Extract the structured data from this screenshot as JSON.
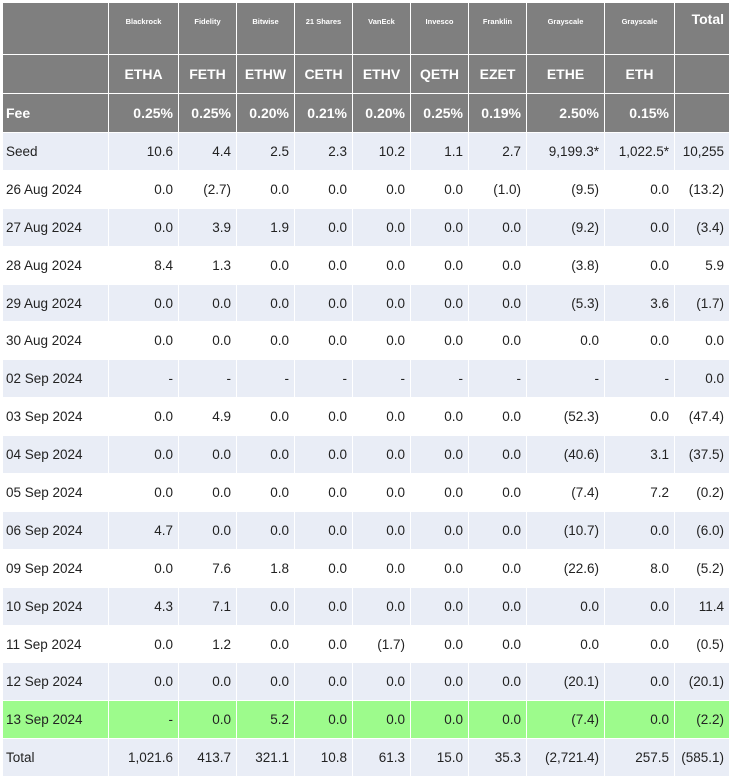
{
  "colors": {
    "header_bg": "#7f7f7f",
    "stripe_bg": "#e9edf6",
    "highlight_bg": "#9dfb8c",
    "negative_text": "#e8332e"
  },
  "issuers": [
    "Blackrock",
    "Fidelity",
    "Bitwise",
    "21 Shares",
    "VanEck",
    "Invesco",
    "Franklin",
    "Grayscale",
    "Grayscale"
  ],
  "total_header": "Total",
  "tickers": [
    "ETHA",
    "FETH",
    "ETHW",
    "CETH",
    "ETHV",
    "QETH",
    "EZET",
    "ETHE",
    "ETH"
  ],
  "fee_label": "Fee",
  "fees": [
    "0.25%",
    "0.25%",
    "0.20%",
    "0.21%",
    "0.20%",
    "0.25%",
    "0.19%",
    "2.50%",
    "0.15%"
  ],
  "rows": [
    {
      "label": "Seed",
      "cells": [
        "10.6",
        "4.4",
        "2.5",
        "2.3",
        "10.2",
        "1.1",
        "2.7",
        "9,199.3*",
        "1,022.5*",
        "10,255"
      ]
    },
    {
      "label": "26 Aug 2024",
      "cells": [
        "0.0",
        "(2.7)",
        "0.0",
        "0.0",
        "0.0",
        "0.0",
        "(1.0)",
        "(9.5)",
        "0.0",
        "(13.2)"
      ]
    },
    {
      "label": "27 Aug 2024",
      "cells": [
        "0.0",
        "3.9",
        "1.9",
        "0.0",
        "0.0",
        "0.0",
        "0.0",
        "(9.2)",
        "0.0",
        "(3.4)"
      ]
    },
    {
      "label": "28 Aug 2024",
      "cells": [
        "8.4",
        "1.3",
        "0.0",
        "0.0",
        "0.0",
        "0.0",
        "0.0",
        "(3.8)",
        "0.0",
        "5.9"
      ]
    },
    {
      "label": "29 Aug 2024",
      "cells": [
        "0.0",
        "0.0",
        "0.0",
        "0.0",
        "0.0",
        "0.0",
        "0.0",
        "(5.3)",
        "3.6",
        "(1.7)"
      ]
    },
    {
      "label": "30 Aug 2024",
      "cells": [
        "0.0",
        "0.0",
        "0.0",
        "0.0",
        "0.0",
        "0.0",
        "0.0",
        "0.0",
        "0.0",
        "0.0"
      ]
    },
    {
      "label": "02 Sep 2024",
      "cells": [
        "-",
        "-",
        "-",
        "-",
        "-",
        "-",
        "-",
        "-",
        "-",
        "0.0"
      ]
    },
    {
      "label": "03 Sep 2024",
      "cells": [
        "0.0",
        "4.9",
        "0.0",
        "0.0",
        "0.0",
        "0.0",
        "0.0",
        "(52.3)",
        "0.0",
        "(47.4)"
      ]
    },
    {
      "label": "04 Sep 2024",
      "cells": [
        "0.0",
        "0.0",
        "0.0",
        "0.0",
        "0.0",
        "0.0",
        "0.0",
        "(40.6)",
        "3.1",
        "(37.5)"
      ]
    },
    {
      "label": "05 Sep 2024",
      "cells": [
        "0.0",
        "0.0",
        "0.0",
        "0.0",
        "0.0",
        "0.0",
        "0.0",
        "(7.4)",
        "7.2",
        "(0.2)"
      ]
    },
    {
      "label": "06 Sep 2024",
      "cells": [
        "4.7",
        "0.0",
        "0.0",
        "0.0",
        "0.0",
        "0.0",
        "0.0",
        "(10.7)",
        "0.0",
        "(6.0)"
      ]
    },
    {
      "label": "09 Sep 2024",
      "cells": [
        "0.0",
        "7.6",
        "1.8",
        "0.0",
        "0.0",
        "0.0",
        "0.0",
        "(22.6)",
        "8.0",
        "(5.2)"
      ]
    },
    {
      "label": "10 Sep 2024",
      "cells": [
        "4.3",
        "7.1",
        "0.0",
        "0.0",
        "0.0",
        "0.0",
        "0.0",
        "0.0",
        "0.0",
        "11.4"
      ]
    },
    {
      "label": "11 Sep 2024",
      "cells": [
        "0.0",
        "1.2",
        "0.0",
        "0.0",
        "(1.7)",
        "0.0",
        "0.0",
        "0.0",
        "0.0",
        "(0.5)"
      ]
    },
    {
      "label": "12 Sep 2024",
      "cells": [
        "0.0",
        "0.0",
        "0.0",
        "0.0",
        "0.0",
        "0.0",
        "0.0",
        "(20.1)",
        "0.0",
        "(20.1)"
      ]
    },
    {
      "label": "13 Sep 2024",
      "highlight": true,
      "cells": [
        "-",
        "0.0",
        "5.2",
        "0.0",
        "0.0",
        "0.0",
        "0.0",
        "(7.4)",
        "0.0",
        "(2.2)"
      ]
    },
    {
      "label": "Total",
      "cells": [
        "1,021.6",
        "413.7",
        "321.1",
        "10.8",
        "61.3",
        "15.0",
        "35.3",
        "(2,721.4)",
        "257.5",
        "(585.1)"
      ]
    }
  ]
}
